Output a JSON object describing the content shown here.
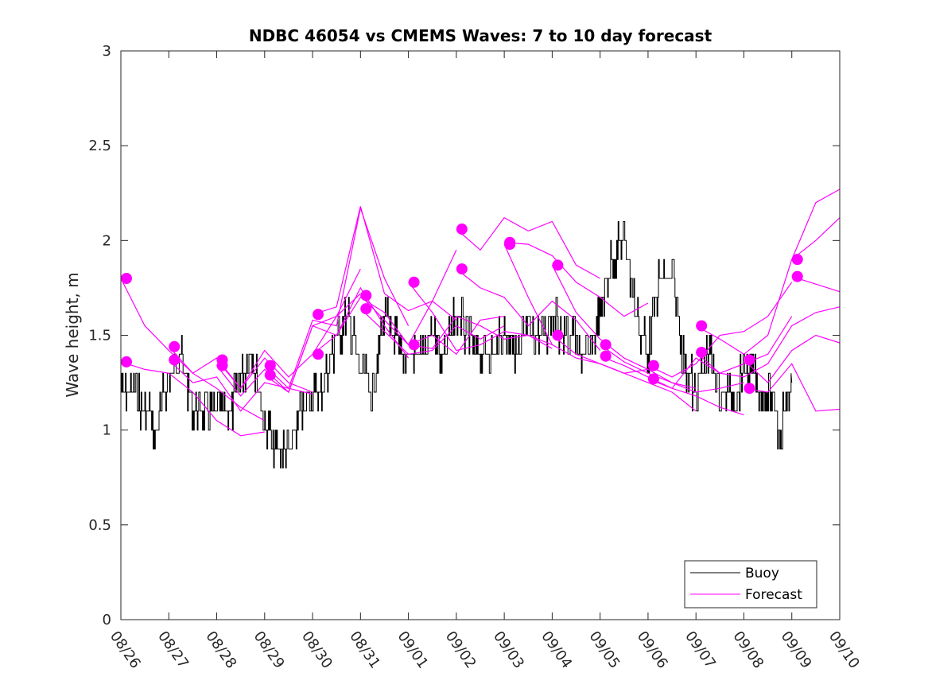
{
  "chart_data": {
    "type": "line",
    "title": "NDBC 46054 vs CMEMS Waves: 7 to 10 day forecast",
    "xlabel": "",
    "ylabel": "Wave height, m",
    "x_tick_labels": [
      "08/26",
      "08/27",
      "08/28",
      "08/29",
      "08/30",
      "08/31",
      "09/01",
      "09/02",
      "09/03",
      "09/04",
      "09/05",
      "09/06",
      "09/07",
      "09/08",
      "09/09",
      "09/10"
    ],
    "xlim_days": [
      0,
      15
    ],
    "ylim": [
      0,
      3
    ],
    "y_ticks": [
      0,
      0.5,
      1,
      1.5,
      2,
      2.5,
      3
    ],
    "y_tick_labels": [
      "0",
      "0.5",
      "1",
      "1.5",
      "2",
      "2.5",
      "3"
    ],
    "grid": false,
    "legend": {
      "placement": "bottom-right",
      "entries": [
        {
          "label": "Buoy",
          "color": "#000000"
        },
        {
          "label": "Forecast",
          "color": "#ff00ff"
        }
      ]
    },
    "colors": {
      "buoy": "#000000",
      "forecast": "#ff00ff"
    },
    "buoy": {
      "name": "Buoy",
      "x_days": [
        0,
        0.25,
        0.5,
        0.75,
        1,
        1.25,
        1.5,
        1.75,
        2,
        2.25,
        2.5,
        2.75,
        3,
        3.25,
        3.5,
        3.75,
        4,
        4.25,
        4.5,
        4.75,
        5,
        5.25,
        5.5,
        5.75,
        6,
        6.25,
        6.5,
        6.75,
        7,
        7.25,
        7.5,
        7.75,
        8,
        8.25,
        8.5,
        8.75,
        9,
        9.25,
        9.5,
        9.75,
        10,
        10.25,
        10.5,
        10.75,
        11,
        11.25,
        11.5,
        11.75,
        12,
        12.25,
        12.5,
        12.75,
        13,
        13.25,
        13.5,
        13.75,
        14
      ],
      "values": [
        1.25,
        1.2,
        1.1,
        1.0,
        1.3,
        1.4,
        1.1,
        1.05,
        1.1,
        1.05,
        1.3,
        1.4,
        1.0,
        0.9,
        0.85,
        1.1,
        1.2,
        1.25,
        1.5,
        1.6,
        1.3,
        1.2,
        1.6,
        1.45,
        1.4,
        1.35,
        1.5,
        1.4,
        1.6,
        1.5,
        1.35,
        1.4,
        1.55,
        1.4,
        1.5,
        1.45,
        1.6,
        1.5,
        1.45,
        1.4,
        1.6,
        1.9,
        2.0,
        1.6,
        1.4,
        1.8,
        1.85,
        1.35,
        1.2,
        1.4,
        1.2,
        1.15,
        1.3,
        1.25,
        1.2,
        1.0,
        1.25
      ]
    },
    "forecasts": [
      {
        "name": "Forecast",
        "x_days": [
          0,
          0.5,
          1,
          1.5,
          2,
          2.5,
          3
        ],
        "values": [
          1.8,
          1.55,
          1.42,
          1.3,
          1.22,
          1.12,
          1.05
        ]
      },
      {
        "name": "Forecast",
        "x_days": [
          0,
          0.5,
          1,
          1.5,
          2,
          2.5,
          3
        ],
        "values": [
          1.36,
          1.32,
          1.3,
          1.2,
          1.05,
          0.97,
          0.99
        ]
      },
      {
        "name": "Forecast",
        "x_days": [
          1,
          1.5,
          2,
          2.5,
          3,
          3.5,
          4
        ],
        "values": [
          1.44,
          1.3,
          1.38,
          1.22,
          1.38,
          1.25,
          1.2
        ]
      },
      {
        "name": "Forecast",
        "x_days": [
          1,
          1.5,
          2,
          2.5,
          3,
          3.5,
          4
        ],
        "values": [
          1.37,
          1.25,
          1.28,
          1.1,
          1.25,
          1.22,
          1.19
        ]
      },
      {
        "name": "Forecast",
        "x_days": [
          2,
          2.5,
          3,
          3.5,
          4,
          4.5,
          5
        ],
        "values": [
          1.37,
          1.22,
          1.42,
          1.28,
          1.4,
          1.6,
          1.85
        ]
      },
      {
        "name": "Forecast",
        "x_days": [
          2,
          2.5,
          3,
          3.5,
          4,
          4.5,
          5
        ],
        "values": [
          1.34,
          1.18,
          1.32,
          1.2,
          1.55,
          1.6,
          1.72
        ]
      },
      {
        "name": "Forecast",
        "x_days": [
          3,
          3.5,
          4,
          4.5,
          5,
          5.5,
          6
        ],
        "values": [
          1.34,
          1.22,
          1.58,
          1.55,
          2.17,
          1.8,
          1.55
        ]
      },
      {
        "name": "Forecast",
        "x_days": [
          3,
          3.5,
          4,
          4.5,
          5,
          5.5,
          6
        ],
        "values": [
          1.29,
          1.2,
          1.55,
          1.5,
          1.75,
          1.55,
          1.38
        ]
      },
      {
        "name": "Forecast",
        "x_days": [
          4,
          4.5,
          5,
          5.5,
          6,
          6.5,
          7
        ],
        "values": [
          1.61,
          1.65,
          2.18,
          1.72,
          1.63,
          1.68,
          1.58
        ]
      },
      {
        "name": "Forecast",
        "x_days": [
          4,
          4.5,
          5,
          5.5,
          6,
          6.5,
          7
        ],
        "values": [
          1.4,
          1.5,
          1.7,
          1.62,
          1.45,
          1.68,
          1.95
        ]
      },
      {
        "name": "Forecast",
        "x_days": [
          5,
          5.5,
          6,
          6.5,
          7,
          7.5,
          8
        ],
        "values": [
          1.71,
          1.58,
          1.45,
          1.5,
          1.4,
          1.58,
          1.6
        ]
      },
      {
        "name": "Forecast",
        "x_days": [
          5,
          5.5,
          6,
          6.5,
          7,
          7.5,
          8
        ],
        "values": [
          1.64,
          1.52,
          1.4,
          1.42,
          1.55,
          1.48,
          1.55
        ]
      },
      {
        "name": "Forecast",
        "x_days": [
          6,
          6.5,
          7,
          7.5,
          8,
          8.5,
          9
        ],
        "values": [
          1.78,
          1.62,
          1.42,
          1.45,
          1.52,
          1.5,
          1.45
        ]
      },
      {
        "name": "Forecast",
        "x_days": [
          6,
          6.5,
          7,
          7.5,
          8,
          8.5,
          9
        ],
        "values": [
          1.45,
          1.43,
          1.6,
          1.55,
          1.48,
          1.5,
          1.43
        ]
      },
      {
        "name": "Forecast",
        "x_days": [
          7,
          7.5,
          8,
          8.5,
          9,
          9.5,
          10
        ],
        "values": [
          2.06,
          1.95,
          2.12,
          2.05,
          2.1,
          1.87,
          1.8
        ]
      },
      {
        "name": "Forecast",
        "x_days": [
          7,
          7.5,
          8,
          8.5,
          9,
          9.5,
          10
        ],
        "values": [
          1.85,
          1.75,
          1.7,
          1.55,
          1.68,
          1.58,
          1.42
        ]
      },
      {
        "name": "Forecast",
        "x_days": [
          8,
          8.5,
          9,
          9.5,
          10,
          10.5,
          11
        ],
        "values": [
          1.99,
          1.98,
          1.92,
          1.78,
          1.7,
          1.6,
          1.67
        ]
      },
      {
        "name": "Forecast",
        "x_days": [
          8,
          8.5,
          9,
          9.5,
          10,
          10.5,
          11
        ],
        "values": [
          1.98,
          1.7,
          1.45,
          1.38,
          1.35,
          1.3,
          1.32
        ]
      },
      {
        "name": "Forecast",
        "x_days": [
          9,
          9.5,
          10,
          10.5,
          11,
          11.5,
          12
        ],
        "values": [
          1.87,
          1.62,
          1.48,
          1.38,
          1.32,
          1.25,
          1.22
        ]
      },
      {
        "name": "Forecast",
        "x_days": [
          9,
          9.5,
          10,
          10.5,
          11,
          11.5,
          12
        ],
        "values": [
          1.5,
          1.4,
          1.35,
          1.3,
          1.25,
          1.2,
          1.1
        ]
      },
      {
        "name": "Forecast",
        "x_days": [
          10,
          10.5,
          11,
          11.5,
          12,
          12.5,
          13
        ],
        "values": [
          1.45,
          1.36,
          1.3,
          1.25,
          1.2,
          1.22,
          1.25
        ]
      },
      {
        "name": "Forecast",
        "x_days": [
          10,
          10.5,
          11,
          11.5,
          12,
          12.5,
          13
        ],
        "values": [
          1.39,
          1.34,
          1.28,
          1.22,
          1.18,
          1.12,
          1.08
        ]
      },
      {
        "name": "Forecast",
        "x_days": [
          11,
          11.5,
          12,
          12.5,
          13,
          13.5,
          14
        ],
        "values": [
          1.34,
          1.28,
          1.35,
          1.5,
          1.52,
          1.6,
          1.78
        ]
      },
      {
        "name": "Forecast",
        "x_days": [
          11,
          11.5,
          12,
          12.5,
          13,
          13.5,
          14
        ],
        "values": [
          1.27,
          1.22,
          1.38,
          1.3,
          1.35,
          1.4,
          1.6
        ]
      },
      {
        "name": "Forecast",
        "x_days": [
          12,
          12.5,
          13,
          13.5,
          14,
          14.5,
          15
        ],
        "values": [
          1.55,
          1.48,
          1.4,
          1.5,
          1.9,
          2.2,
          2.27
        ]
      },
      {
        "name": "Forecast",
        "x_days": [
          12,
          12.5,
          13,
          13.5,
          14,
          14.5,
          15
        ],
        "values": [
          1.41,
          1.3,
          1.28,
          1.35,
          1.55,
          1.62,
          1.65
        ]
      },
      {
        "name": "Forecast",
        "x_days": [
          13,
          13.5,
          14,
          14.5,
          15
        ],
        "values": [
          1.37,
          1.25,
          1.42,
          1.5,
          1.46
        ]
      },
      {
        "name": "Forecast",
        "x_days": [
          13,
          13.5,
          14,
          14.5,
          15
        ],
        "values": [
          1.22,
          1.2,
          1.35,
          1.1,
          1.11
        ]
      },
      {
        "name": "Forecast",
        "x_days": [
          14,
          14.5,
          15
        ],
        "values": [
          1.9,
          2.0,
          2.12
        ]
      },
      {
        "name": "Forecast",
        "x_days": [
          14,
          14.5,
          15
        ],
        "values": [
          1.81,
          1.77,
          1.73
        ]
      }
    ]
  }
}
